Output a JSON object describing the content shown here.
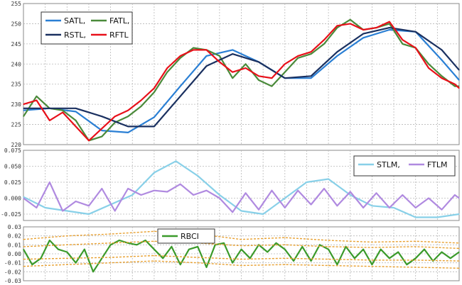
{
  "chart_data": [
    {
      "type": "line",
      "ylim": [
        220,
        255
      ],
      "yticks": [
        220,
        225,
        230,
        235,
        240,
        245,
        250,
        255
      ],
      "grid": true,
      "legend_position": "top-left",
      "legend": [
        "SATL,",
        "FATL,",
        "RSTL,",
        "RFTL"
      ],
      "series": [
        {
          "name": "SATL",
          "color": "#2a7fd4",
          "x": [
            0,
            6,
            12,
            18,
            24,
            30,
            36,
            42,
            48,
            54,
            60,
            66,
            72,
            78,
            84,
            90,
            96,
            100
          ],
          "y": [
            228.5,
            229,
            228.2,
            223.5,
            223,
            226.8,
            234.5,
            242,
            243.5,
            240.5,
            236.5,
            236.5,
            242,
            246.5,
            248.5,
            248,
            241,
            236
          ]
        },
        {
          "name": "FATL",
          "color": "#4a8a3a",
          "x": [
            0,
            3,
            6,
            9,
            12,
            15,
            18,
            21,
            24,
            27,
            30,
            33,
            36,
            39,
            42,
            45,
            48,
            51,
            54,
            57,
            60,
            63,
            66,
            69,
            72,
            75,
            78,
            81,
            84,
            87,
            90,
            93,
            96,
            99,
            100
          ],
          "y": [
            227,
            232,
            229,
            228.5,
            226,
            221,
            222,
            225.5,
            227,
            229.5,
            233,
            238,
            241.5,
            244,
            243.5,
            242,
            236.5,
            240,
            236,
            234.5,
            238,
            241.5,
            242.5,
            245,
            249,
            251,
            248.5,
            249,
            250,
            245,
            244,
            240,
            237,
            234.5,
            234.5
          ]
        },
        {
          "name": "RSTL",
          "color": "#1a3060",
          "x": [
            0,
            6,
            12,
            18,
            24,
            30,
            36,
            42,
            48,
            54,
            60,
            66,
            72,
            78,
            84,
            90,
            96,
            100
          ],
          "y": [
            229,
            229,
            229,
            227,
            224.5,
            224.5,
            232,
            239.5,
            242.5,
            240.5,
            236.5,
            237,
            243,
            247.5,
            249,
            248,
            243.5,
            238.5
          ]
        },
        {
          "name": "RFTL",
          "color": "#e8101a",
          "x": [
            0,
            3,
            6,
            9,
            12,
            15,
            18,
            21,
            24,
            27,
            30,
            33,
            36,
            39,
            42,
            45,
            48,
            51,
            54,
            57,
            60,
            63,
            66,
            69,
            72,
            75,
            78,
            81,
            84,
            87,
            90,
            93,
            96,
            99,
            100
          ],
          "y": [
            230,
            231,
            226,
            228,
            224.5,
            221,
            224,
            227,
            228.5,
            231,
            234,
            239,
            242,
            243.5,
            243.5,
            240.5,
            238,
            239,
            237,
            236.5,
            240,
            242,
            243,
            246,
            249.5,
            250,
            248.5,
            249,
            250.5,
            246,
            244,
            239,
            236.5,
            235,
            234
          ]
        }
      ]
    },
    {
      "type": "line",
      "ylim": [
        -0.035,
        0.075
      ],
      "yticks": [
        "-0.025",
        "0.000",
        "0.025",
        "0.050",
        "0.075"
      ],
      "grid": true,
      "legend_position": "top-right",
      "legend": [
        "STLM,",
        "FTLM"
      ],
      "series": [
        {
          "name": "STLM",
          "color": "#88d0e8",
          "x": [
            0,
            5,
            10,
            15,
            20,
            25,
            30,
            35,
            40,
            45,
            50,
            55,
            60,
            65,
            70,
            75,
            80,
            85,
            90,
            95,
            100
          ],
          "y": [
            0.002,
            -0.015,
            -0.02,
            -0.025,
            -0.01,
            0.005,
            0.04,
            0.058,
            0.035,
            0.005,
            -0.02,
            -0.025,
            0,
            0.025,
            0.03,
            0.005,
            -0.012,
            -0.015,
            -0.03,
            -0.03,
            -0.025
          ]
        },
        {
          "name": "FTLM",
          "color": "#b08ae0",
          "x": [
            0,
            3,
            6,
            9,
            12,
            15,
            18,
            21,
            24,
            27,
            30,
            33,
            36,
            39,
            42,
            45,
            48,
            51,
            54,
            57,
            60,
            63,
            66,
            69,
            72,
            75,
            78,
            81,
            84,
            87,
            90,
            93,
            96,
            99,
            100
          ],
          "y": [
            0,
            -0.015,
            0.025,
            -0.02,
            -0.005,
            -0.012,
            0.015,
            -0.02,
            0.015,
            0.005,
            0.012,
            0.01,
            0.022,
            0.005,
            0.012,
            0,
            -0.022,
            0.008,
            -0.018,
            0.012,
            -0.015,
            0.012,
            -0.01,
            0.015,
            -0.012,
            0.01,
            -0.015,
            0.008,
            -0.015,
            0.005,
            -0.015,
            0,
            -0.018,
            0.005,
            0
          ]
        }
      ]
    },
    {
      "type": "line",
      "ylim": [
        -0.03,
        0.03
      ],
      "yticks": [
        "-0.03",
        "-0.02",
        "-0.01",
        "0.00",
        "0.01",
        "0.02",
        "0.03"
      ],
      "grid": true,
      "legend_position": "top-center",
      "legend": [
        "RBCI"
      ],
      "series": [
        {
          "name": "RBCI",
          "color": "#3a9a2a",
          "x": [
            0,
            2,
            4,
            6,
            8,
            10,
            12,
            14,
            16,
            18,
            20,
            22,
            24,
            26,
            28,
            30,
            32,
            34,
            36,
            38,
            40,
            42,
            44,
            46,
            48,
            50,
            52,
            54,
            56,
            58,
            60,
            62,
            64,
            66,
            68,
            70,
            72,
            74,
            76,
            78,
            80,
            82,
            84,
            86,
            88,
            90,
            92,
            94,
            96,
            98,
            100
          ],
          "y": [
            0.005,
            -0.012,
            -0.005,
            0.015,
            0.005,
            0.002,
            -0.01,
            0.005,
            -0.02,
            -0.005,
            0.01,
            0.015,
            0.012,
            0.01,
            0.015,
            0.005,
            -0.005,
            0.008,
            -0.012,
            0.005,
            0.008,
            -0.015,
            0.01,
            0.012,
            -0.01,
            0.005,
            -0.005,
            0.01,
            0.002,
            0.012,
            0.005,
            -0.008,
            0.008,
            -0.008,
            0.01,
            0.005,
            -0.012,
            0.008,
            -0.005,
            0.005,
            -0.012,
            0.005,
            -0.005,
            0.002,
            -0.012,
            -0.005,
            0.005,
            -0.008,
            0.002,
            -0.005,
            0.002
          ]
        },
        {
          "name": "",
          "color": "#e8a030",
          "dashed": true,
          "x": [
            0,
            10,
            20,
            30,
            40,
            50,
            60,
            70,
            80,
            90,
            100
          ],
          "y": [
            0.016,
            0.02,
            0.022,
            0.025,
            0.022,
            0.016,
            0.018,
            0.015,
            0.013,
            0.014,
            0.012
          ]
        },
        {
          "name": "",
          "color": "#e8a030",
          "dashed": true,
          "x": [
            0,
            10,
            20,
            30,
            40,
            50,
            60,
            70,
            80,
            90,
            100
          ],
          "y": [
            0.008,
            0.01,
            0.012,
            0.014,
            0.012,
            0.009,
            0.01,
            0.008,
            0.007,
            0.008,
            0.006
          ]
        },
        {
          "name": "",
          "color": "#e8a030",
          "dashed": true,
          "x": [
            0,
            10,
            20,
            30,
            40,
            50,
            60,
            70,
            80,
            90,
            100
          ],
          "y": [
            -0.006,
            -0.005,
            -0.004,
            -0.002,
            -0.004,
            -0.006,
            -0.005,
            -0.006,
            -0.007,
            -0.007,
            -0.008
          ]
        },
        {
          "name": "",
          "color": "#e8a030",
          "dashed": true,
          "x": [
            0,
            10,
            20,
            30,
            40,
            50,
            60,
            70,
            80,
            90,
            100
          ],
          "y": [
            -0.014,
            -0.012,
            -0.01,
            -0.008,
            -0.01,
            -0.013,
            -0.012,
            -0.013,
            -0.014,
            -0.015,
            -0.016
          ]
        }
      ]
    }
  ]
}
